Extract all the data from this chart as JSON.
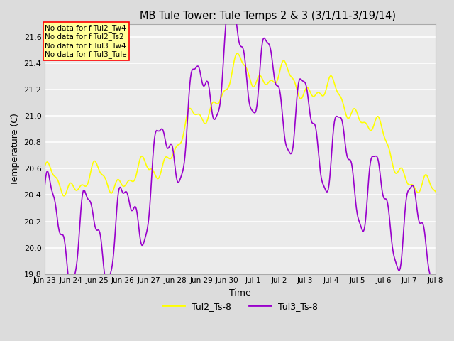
{
  "title": "MB Tule Tower: Tule Temps 2 & 3 (3/1/11-3/19/14)",
  "xlabel": "Time",
  "ylabel": "Temperature (C)",
  "ylim": [
    19.8,
    21.7
  ],
  "yticks": [
    19.8,
    20.0,
    20.2,
    20.4,
    20.6,
    20.8,
    21.0,
    21.2,
    21.4,
    21.6
  ],
  "legend_labels": [
    "Tul2_Ts-8",
    "Tul3_Ts-8"
  ],
  "line_color_yellow": "yellow",
  "line_color_purple": "#9900cc",
  "background_color": "#dcdcdc",
  "plot_bg_color": "#ebebeb",
  "grid_color": "white",
  "annotations": [
    "No data for f Tul2_Tw4",
    "No data for f Tul2_Ts2",
    "No data for f Tul3_Tw4",
    "No data for f Tul3_Tule"
  ],
  "annotation_box_color": "#ffff99",
  "annotation_box_edge": "red",
  "xticklabels": [
    "Jun 23",
    "Jun 24",
    "Jun 25",
    "Jun 26",
    "Jun 27",
    "Jun 28",
    "Jun 29",
    "Jun 30",
    "Jul 1",
    "Jul 2",
    "Jul 3",
    "Jul 4",
    "Jul 5",
    "Jul 6",
    "Jul 7",
    "Jul 8"
  ],
  "figsize": [
    6.4,
    4.8
  ],
  "dpi": 100
}
